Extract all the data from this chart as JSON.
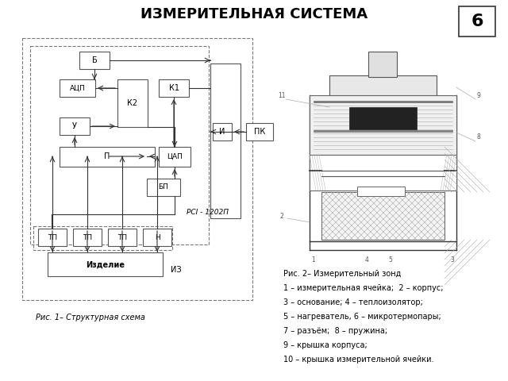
{
  "title": "ИЗМЕРИТЕЛЬНАЯ СИСТЕМА",
  "page_number": "6",
  "background_color": "#ffffff",
  "title_fontsize": 13,
  "title_fontweight": "bold",
  "fig1_caption": "Рис. 1– Структурная схема",
  "fig2_caption_lines": [
    "Рис. 2– Измерительный зонд",
    "1 – измерительная ячейка;  2 – корпус;",
    "3 – основание; 4 – теплоизолятор;",
    "5 – нагреватель, 6 – микротермопары;",
    "7 – разъём;  8 – пружина;",
    "9 – крышка корпуса;",
    "10 – крышка измерительной ячейки."
  ],
  "rsi_label": "РСI - 1202П"
}
